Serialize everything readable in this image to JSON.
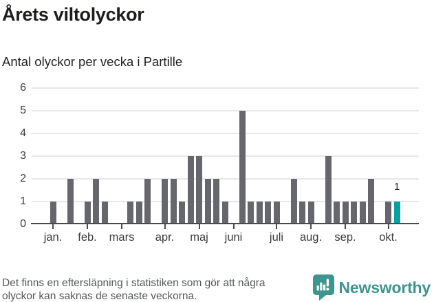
{
  "header": {
    "title": "Årets viltolyckor",
    "subtitle": "Antal olyckor per vecka i Partille"
  },
  "chart_data": {
    "type": "bar",
    "title": "Årets viltolyckor",
    "subtitle": "Antal olyckor per vecka i Partille",
    "x_unit": "vecka",
    "ylim": [
      0,
      6
    ],
    "yticks": [
      0,
      1,
      2,
      3,
      4,
      5,
      6
    ],
    "grid": "horizontal",
    "legend": "none",
    "values": [
      1,
      0,
      2,
      0,
      1,
      2,
      1,
      0,
      0,
      1,
      1,
      2,
      0,
      2,
      2,
      1,
      3,
      3,
      2,
      2,
      1,
      0,
      5,
      1,
      1,
      1,
      1,
      0,
      2,
      1,
      1,
      0,
      3,
      1,
      1,
      1,
      1,
      2,
      0,
      1,
      1
    ],
    "month_ticks": [
      {
        "label": "jan.",
        "week": 0
      },
      {
        "label": "feb.",
        "week": 4
      },
      {
        "label": "mars",
        "week": 8
      },
      {
        "label": "apr.",
        "week": 13
      },
      {
        "label": "maj",
        "week": 17
      },
      {
        "label": "juni",
        "week": 21
      },
      {
        "label": "juli",
        "week": 26
      },
      {
        "label": "aug.",
        "week": 30
      },
      {
        "label": "sep.",
        "week": 34
      },
      {
        "label": "okt.",
        "week": 39
      }
    ],
    "highlight_index": 40,
    "highlight_label": "1",
    "colors": {
      "bar": "#66666d",
      "highlight": "#0aa0a0",
      "grid": "#e7e7e9",
      "axis": "#4a4a4b"
    }
  },
  "footer": {
    "note_lines": [
      "Det finns en eftersläpning i statistiken som gör att några",
      "olyckor kan saknas de senaste veckorna."
    ],
    "brand": {
      "name": "Newsworthy",
      "logo_icon": "newsworthy-speech-bubble-chart-icon",
      "color": "#3e948e"
    }
  }
}
